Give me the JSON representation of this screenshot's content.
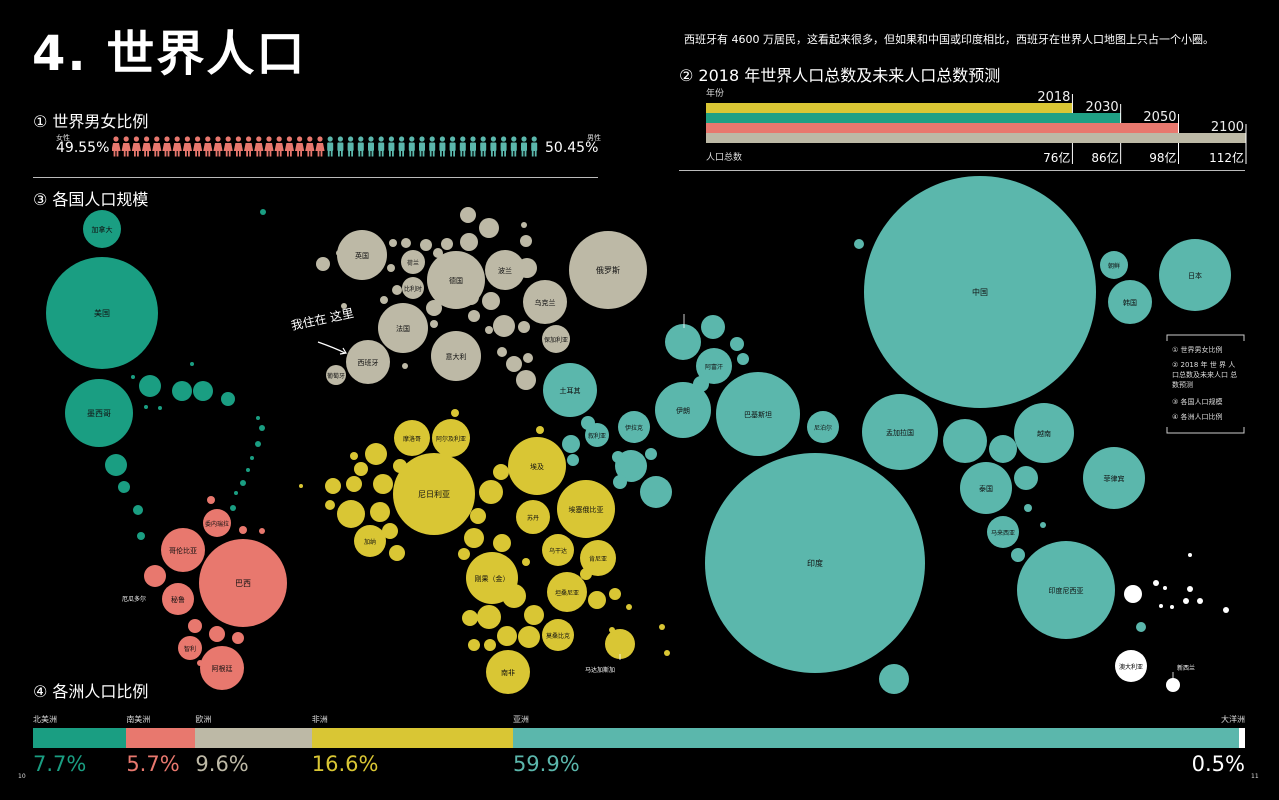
{
  "title": "4. 世界人口",
  "note": "西班牙有 4600 万居民，这看起来很多，但如果和中国或印度相比，西班牙在世界人口地图上只占一个小圈。",
  "sections": {
    "gender": "① 世界男女比例",
    "forecast": "② 2018 年世界人口总数及未来人口总数预测",
    "countries": "③ 各国人口规模",
    "continents": "④ 各洲人口比例"
  },
  "gender": {
    "female_label": "女性",
    "male_label": "男性",
    "female_pct": "49.55%",
    "male_pct": "50.45%",
    "female_value": 49.55,
    "male_value": 50.45,
    "female_color": "#e8786e",
    "male_color": "#5bb7ac"
  },
  "forecast": {
    "year_label": "年份",
    "total_label": "人口总数",
    "bars": [
      {
        "year": "2018",
        "total": "76亿",
        "value": 76,
        "color": "#d9c634"
      },
      {
        "year": "2030",
        "total": "86亿",
        "value": 86,
        "color": "#1fa084"
      },
      {
        "year": "2050",
        "total": "98亿",
        "value": 98,
        "color": "#e8786e"
      },
      {
        "year": "2100",
        "total": "112亿",
        "value": 112,
        "color": "#bdb9a6"
      }
    ]
  },
  "legend": {
    "items": [
      "① 世界男女比例",
      "② 2018 年 世 界 人 口总数及未来人口 总数预测",
      "③ 各国人口规模",
      "④ 各洲人口比例"
    ]
  },
  "annotation": "我住在 这里",
  "continents": [
    {
      "name": "北美洲",
      "pct": "7.7%",
      "value": 7.7,
      "color": "#1a9e82"
    },
    {
      "name": "南美洲",
      "pct": "5.7%",
      "value": 5.7,
      "color": "#e8786e"
    },
    {
      "name": "欧洲",
      "pct": "9.6%",
      "value": 9.6,
      "color": "#bdb9a6"
    },
    {
      "name": "非洲",
      "pct": "16.6%",
      "value": 16.6,
      "color": "#d9c634"
    },
    {
      "name": "亚洲",
      "pct": "59.9%",
      "value": 59.9,
      "color": "#5bb7ac"
    },
    {
      "name": "大洋洲",
      "pct": "0.5%",
      "value": 0.5,
      "color": "#ffffff"
    }
  ],
  "page_numbers": {
    "left": "10",
    "right": "11"
  },
  "region_colors": {
    "north_america": "#1a9e82",
    "south_america": "#e8786e",
    "europe": "#bdb9a6",
    "africa": "#d9c634",
    "asia": "#5bb7ac",
    "oceania": "#ffffff"
  },
  "countries": [
    {
      "name": "加拿大",
      "region": "north_america"
    },
    {
      "name": "美国",
      "region": "north_america"
    },
    {
      "name": "墨西哥",
      "region": "north_america"
    },
    {
      "name": "委内瑞拉",
      "region": "south_america"
    },
    {
      "name": "哥伦比亚",
      "region": "south_america"
    },
    {
      "name": "巴西",
      "region": "south_america"
    },
    {
      "name": "厄瓜多尔",
      "region": "south_america"
    },
    {
      "name": "秘鲁",
      "region": "south_america"
    },
    {
      "name": "智利",
      "region": "south_america"
    },
    {
      "name": "阿根廷",
      "region": "south_america"
    },
    {
      "name": "英国",
      "region": "europe"
    },
    {
      "name": "荷兰",
      "region": "europe"
    },
    {
      "name": "比利时",
      "region": "europe"
    },
    {
      "name": "德国",
      "region": "europe"
    },
    {
      "name": "波兰",
      "region": "europe"
    },
    {
      "name": "俄罗斯",
      "region": "europe"
    },
    {
      "name": "乌克兰",
      "region": "europe"
    },
    {
      "name": "法国",
      "region": "europe"
    },
    {
      "name": "保加利亚",
      "region": "europe"
    },
    {
      "name": "意大利",
      "region": "europe"
    },
    {
      "name": "西班牙",
      "region": "europe"
    },
    {
      "name": "葡萄牙",
      "region": "europe"
    },
    {
      "name": "摩洛哥",
      "region": "africa"
    },
    {
      "name": "阿尔及利亚",
      "region": "africa"
    },
    {
      "name": "埃及",
      "region": "africa"
    },
    {
      "name": "尼日利亚",
      "region": "africa"
    },
    {
      "name": "苏丹",
      "region": "africa"
    },
    {
      "name": "埃塞俄比亚",
      "region": "africa"
    },
    {
      "name": "加纳",
      "region": "africa"
    },
    {
      "name": "乌干达",
      "region": "africa"
    },
    {
      "name": "肯尼亚",
      "region": "africa"
    },
    {
      "name": "刚果（金）",
      "region": "africa"
    },
    {
      "name": "坦桑尼亚",
      "region": "africa"
    },
    {
      "name": "莫桑比克",
      "region": "africa"
    },
    {
      "name": "南非",
      "region": "africa"
    },
    {
      "name": "马达加斯加",
      "region": "africa"
    },
    {
      "name": "土耳其",
      "region": "asia"
    },
    {
      "name": "叙利亚",
      "region": "asia"
    },
    {
      "name": "伊拉克",
      "region": "asia"
    },
    {
      "name": "沙特阿拉伯",
      "region": "asia"
    },
    {
      "name": "伊朗",
      "region": "asia"
    },
    {
      "name": "乌兹别克斯坦",
      "region": "asia"
    },
    {
      "name": "阿富汗",
      "region": "asia"
    },
    {
      "name": "巴基斯坦",
      "region": "asia"
    },
    {
      "name": "尼泊尔",
      "region": "asia"
    },
    {
      "name": "印度",
      "region": "asia"
    },
    {
      "name": "孟加拉国",
      "region": "asia"
    },
    {
      "name": "中国",
      "region": "asia"
    },
    {
      "name": "朝鲜",
      "region": "asia"
    },
    {
      "name": "韩国",
      "region": "asia"
    },
    {
      "name": "日本",
      "region": "asia"
    },
    {
      "name": "越南",
      "region": "asia"
    },
    {
      "name": "泰国",
      "region": "asia"
    },
    {
      "name": "菲律宾",
      "region": "asia"
    },
    {
      "name": "马来西亚",
      "region": "asia"
    },
    {
      "name": "印度尼西亚",
      "region": "asia"
    },
    {
      "name": "澳大利亚",
      "region": "oceania"
    },
    {
      "name": "新西兰",
      "region": "oceania"
    }
  ]
}
